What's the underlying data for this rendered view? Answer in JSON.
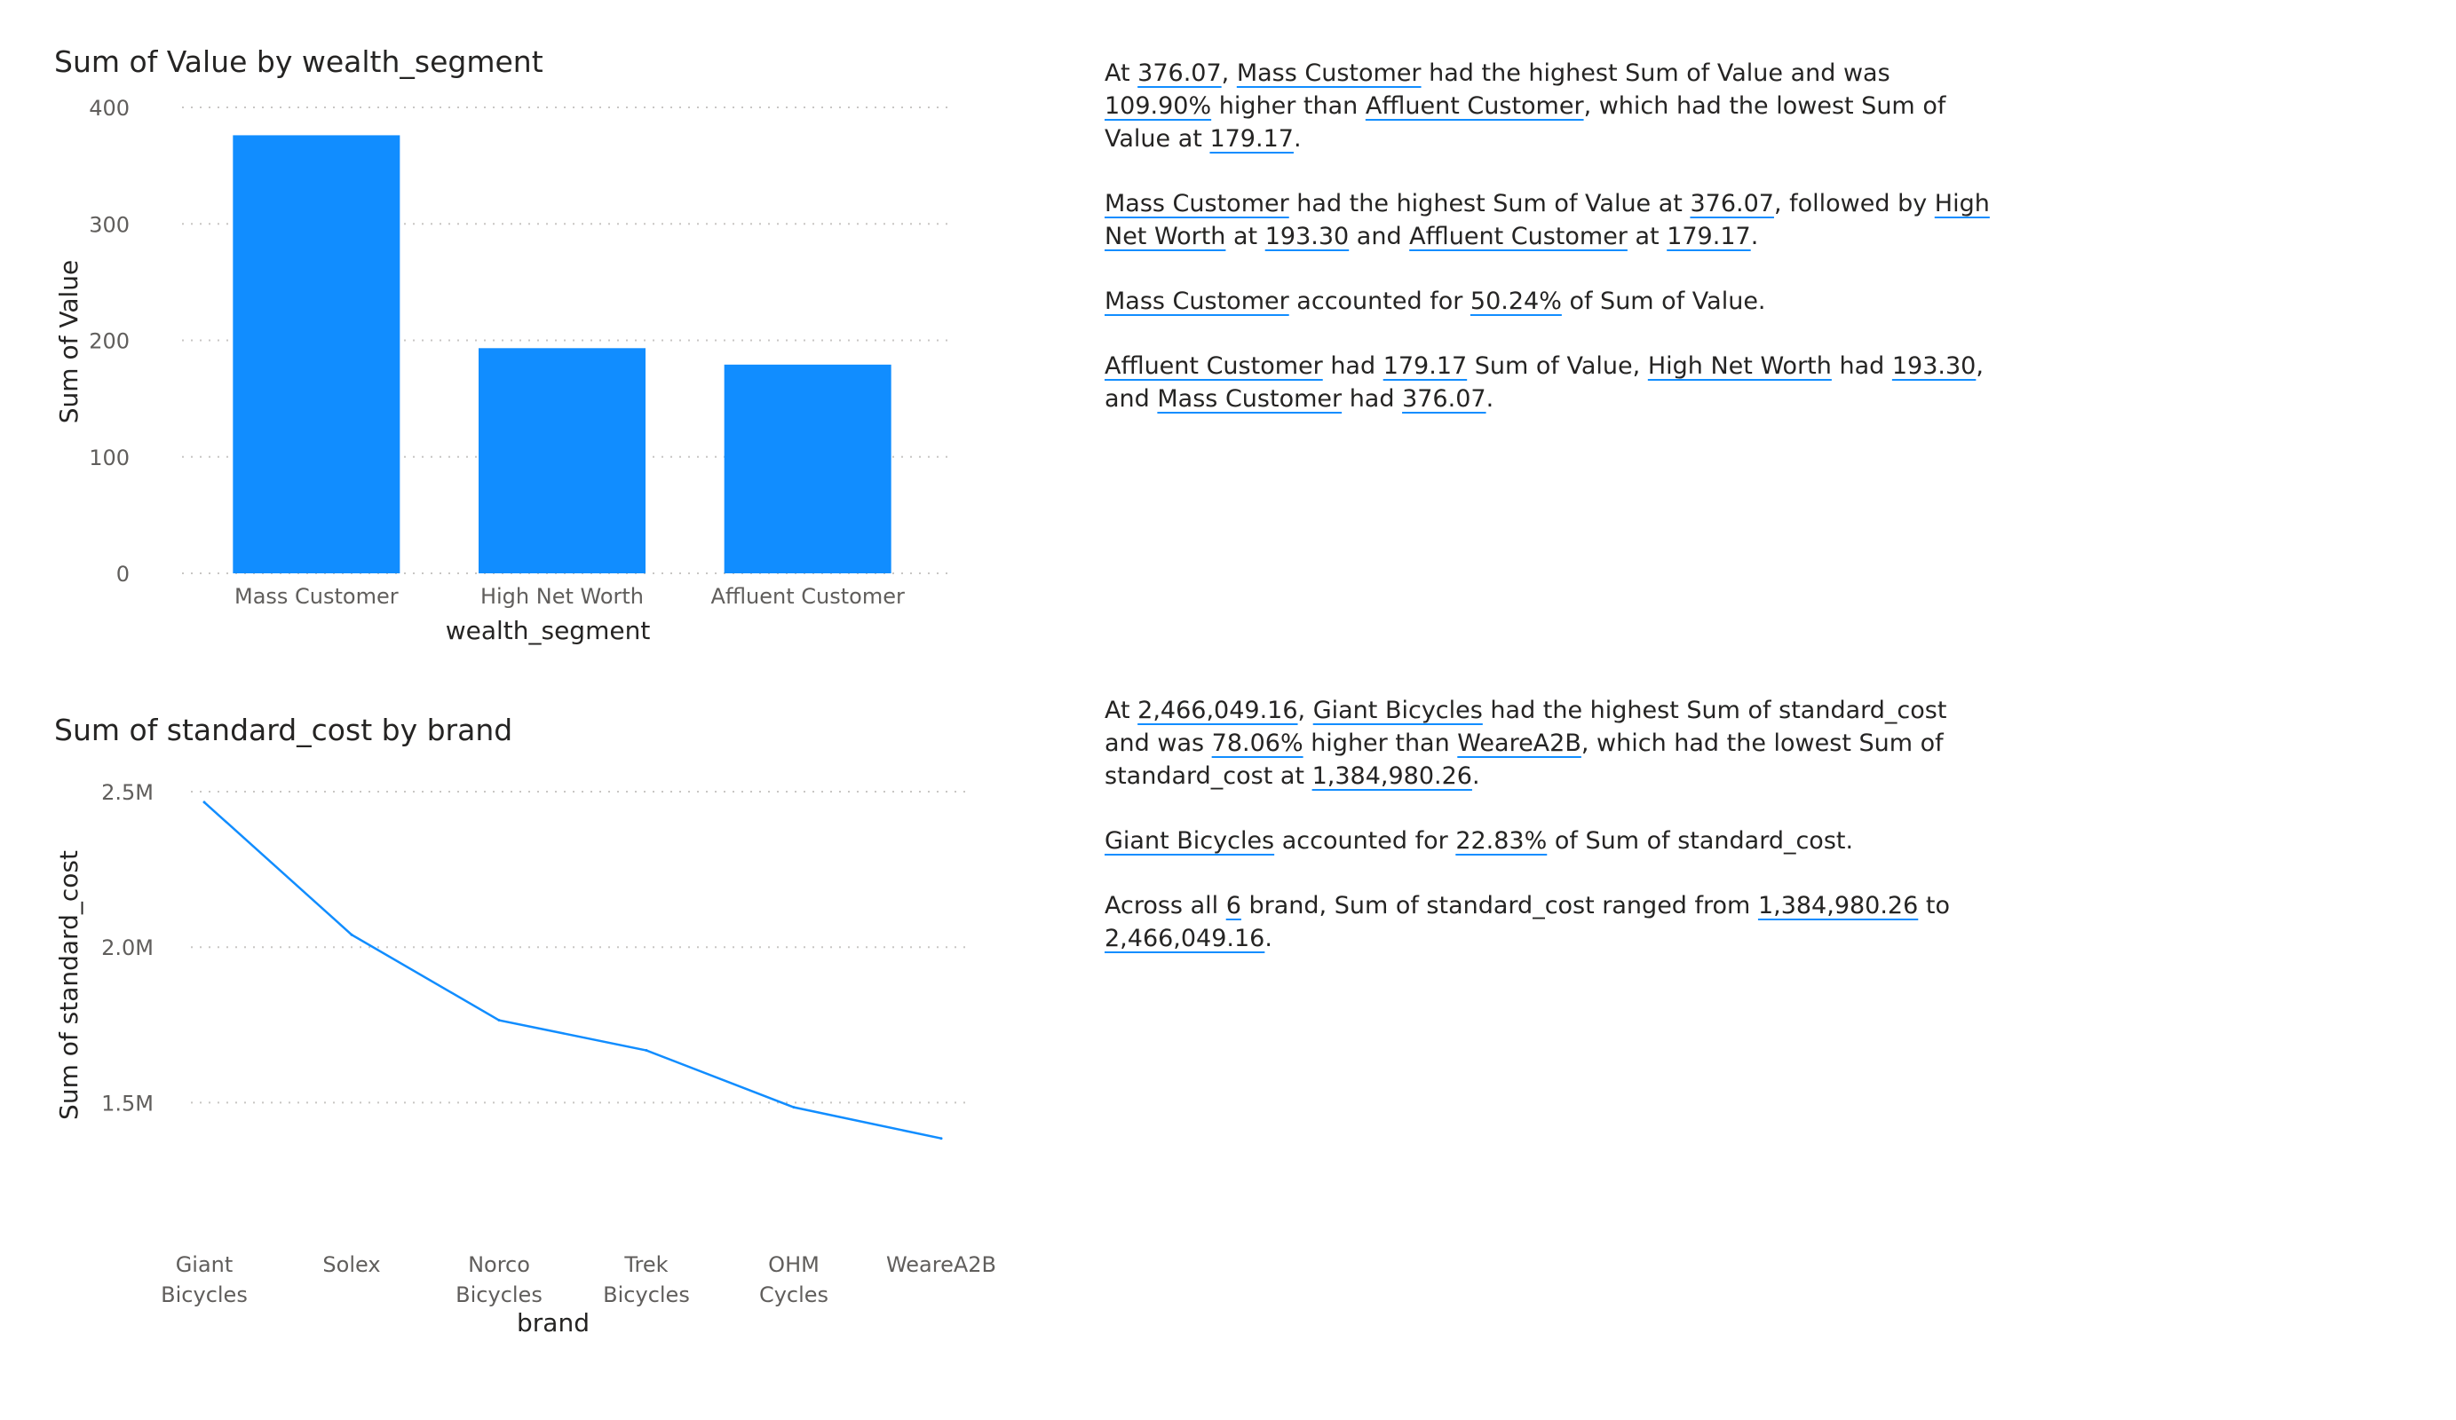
{
  "colors": {
    "accent": "#118dff",
    "text": "#252423",
    "axis_text": "#605e5c",
    "grid": "#c8c6c4"
  },
  "chart_data": [
    {
      "type": "bar",
      "title": "Sum of Value by wealth_segment",
      "xlabel": "wealth_segment",
      "ylabel": "Sum of Value",
      "categories": [
        "Mass Customer",
        "High Net Worth",
        "Affluent Customer"
      ],
      "values": [
        376.07,
        193.3,
        179.17
      ],
      "ylim": [
        0,
        400
      ],
      "yticks": [
        0,
        100,
        200,
        300,
        400
      ],
      "ytick_labels": [
        "0",
        "100",
        "200",
        "300",
        "400"
      ],
      "grid": true
    },
    {
      "type": "line",
      "title": "Sum of standard_cost by brand",
      "xlabel": "brand",
      "ylabel": "Sum of standard_cost",
      "categories": [
        [
          "Giant",
          "Bicycles"
        ],
        [
          "Solex"
        ],
        [
          "Norco",
          "Bicycles"
        ],
        [
          "Trek",
          "Bicycles"
        ],
        [
          "OHM",
          "Cycles"
        ],
        [
          "WeareA2B"
        ]
      ],
      "values": [
        2466049.16,
        2040000,
        1765000,
        1668000,
        1485000,
        1384980.26
      ],
      "ylim": [
        1250000,
        2520000
      ],
      "yticks": [
        1500000,
        2000000,
        2500000
      ],
      "ytick_labels": [
        "1.5M",
        "2.0M",
        "2.5M"
      ],
      "grid": true
    }
  ],
  "narratives": [
    [
      [
        {
          "t": "At "
        },
        {
          "t": "376.07",
          "l": 1
        },
        {
          "t": ", "
        },
        {
          "t": "Mass Customer",
          "l": 1
        },
        {
          "t": " had the highest Sum of Value and was "
        },
        {
          "t": "109.90%",
          "l": 1
        },
        {
          "t": " higher than "
        },
        {
          "t": "Affluent Customer",
          "l": 1
        },
        {
          "t": ", which had the lowest Sum of Value at "
        },
        {
          "t": "179.17",
          "l": 1
        },
        {
          "t": "."
        }
      ],
      [
        {
          "t": "Mass Customer",
          "l": 1
        },
        {
          "t": " had the highest Sum of Value at "
        },
        {
          "t": "376.07",
          "l": 1
        },
        {
          "t": ", followed by "
        },
        {
          "t": "High Net Worth",
          "l": 1
        },
        {
          "t": " at "
        },
        {
          "t": "193.30",
          "l": 1
        },
        {
          "t": " and "
        },
        {
          "t": "Affluent Customer",
          "l": 1
        },
        {
          "t": " at "
        },
        {
          "t": "179.17",
          "l": 1
        },
        {
          "t": "."
        }
      ],
      [
        {
          "t": "Mass Customer",
          "l": 1
        },
        {
          "t": " accounted for "
        },
        {
          "t": "50.24%",
          "l": 1
        },
        {
          "t": " of Sum of Value."
        }
      ],
      [
        {
          "t": "Affluent Customer",
          "l": 1
        },
        {
          "t": " had "
        },
        {
          "t": "179.17",
          "l": 1
        },
        {
          "t": " Sum of Value, "
        },
        {
          "t": "High Net Worth",
          "l": 1
        },
        {
          "t": " had "
        },
        {
          "t": "193.30",
          "l": 1
        },
        {
          "t": ", and "
        },
        {
          "t": "Mass Customer",
          "l": 1
        },
        {
          "t": " had "
        },
        {
          "t": "376.07",
          "l": 1
        },
        {
          "t": "."
        }
      ]
    ],
    [
      [
        {
          "t": "At "
        },
        {
          "t": "2,466,049.16",
          "l": 1
        },
        {
          "t": ", "
        },
        {
          "t": "Giant Bicycles",
          "l": 1
        },
        {
          "t": " had the highest Sum of standard_cost and was "
        },
        {
          "t": "78.06%",
          "l": 1
        },
        {
          "t": " higher than "
        },
        {
          "t": "WeareA2B",
          "l": 1
        },
        {
          "t": ", which had the lowest Sum of standard_cost at "
        },
        {
          "t": "1,384,980.26",
          "l": 1
        },
        {
          "t": "."
        }
      ],
      [
        {
          "t": "Giant Bicycles",
          "l": 1
        },
        {
          "t": " accounted for "
        },
        {
          "t": "22.83%",
          "l": 1
        },
        {
          "t": " of Sum of standard_cost."
        }
      ],
      [
        {
          "t": "Across all "
        },
        {
          "t": "6",
          "l": 1
        },
        {
          "t": " brand, Sum of standard_cost ranged from "
        },
        {
          "t": "1,384,980.26",
          "l": 1
        },
        {
          "t": " to "
        },
        {
          "t": "2,466,049.16",
          "l": 1
        },
        {
          "t": "."
        }
      ]
    ]
  ]
}
